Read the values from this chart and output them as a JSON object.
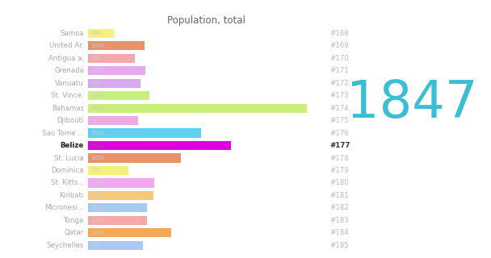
{
  "title": "Population, total",
  "big_number": "1847",
  "big_number_color": "#3bbdd4",
  "background_color": "#ffffff",
  "countries": [
    "Samoa",
    "United Ar.",
    "Antigua a.",
    "Grenada",
    "Vanuatu",
    "St. Vince.",
    "Bahamas",
    "Djibouti",
    "Sao Tome ...",
    "Belize",
    "St. Lucia",
    "Dominica",
    "St. Kitts...",
    "Kiribati",
    "Micronesi...",
    "Tonga",
    "Qatar",
    "Seychelles"
  ],
  "ranks": [
    "#168",
    "#169",
    "#170",
    "#171",
    "#172",
    "#173",
    "#174",
    "#175",
    "#176",
    "#177",
    "#178",
    "#179",
    "#180",
    "#181",
    "#182",
    "#183",
    "#184",
    "#185"
  ],
  "values": [
    46,
    100,
    83,
    102,
    93,
    109,
    389,
    88,
    201,
    254,
    165,
    72,
    117,
    116,
    104,
    104,
    147,
    97
  ],
  "bar_colors": [
    "#f5f07a",
    "#e8926a",
    "#f5a8a8",
    "#e8a8f0",
    "#d8a8f0",
    "#c8f07a",
    "#c8f07a",
    "#f0a8e0",
    "#60d0f0",
    "#e000e0",
    "#e8926a",
    "#f5f07a",
    "#f0a8f0",
    "#f5c87a",
    "#a8c8f5",
    "#f5a8a8",
    "#f5a855",
    "#a8c8f5"
  ],
  "value_labels": [
    "46k",
    "100k",
    "83k",
    "102k",
    "93k",
    "109k",
    "389k",
    "88k",
    "201k",
    "254k",
    "165k",
    "72k",
    "117k",
    "116k",
    "104k",
    "104k",
    "147k",
    "97k"
  ],
  "highlight_index": 9,
  "bar_height": 0.72,
  "xlim_max": 420
}
